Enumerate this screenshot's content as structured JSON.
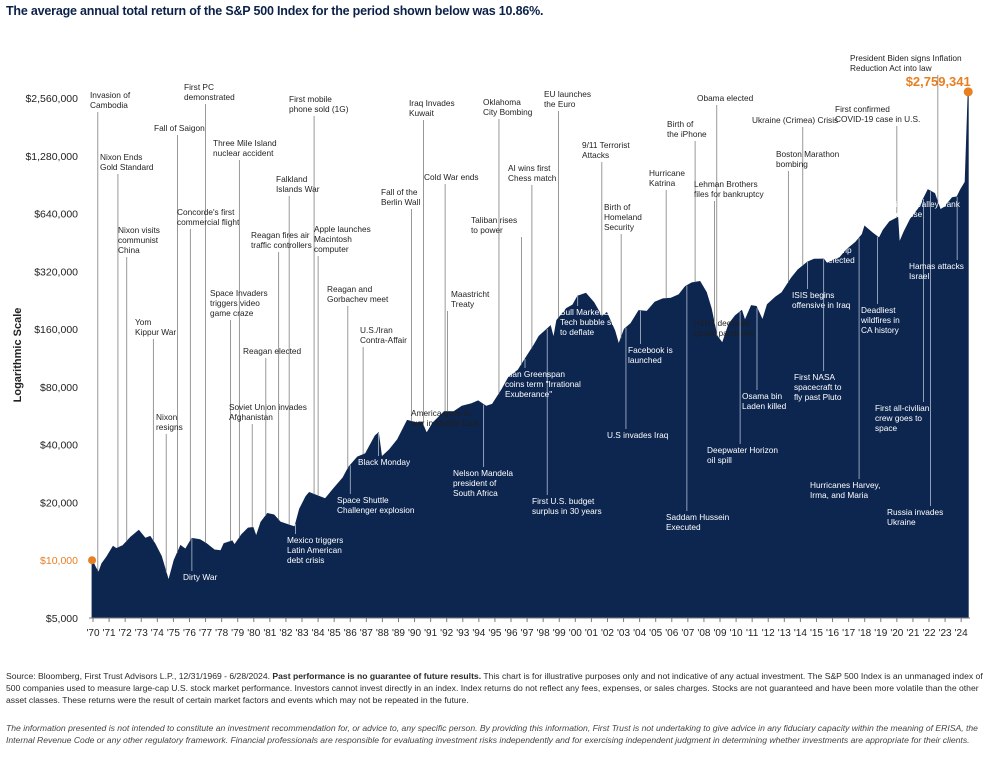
{
  "title": "The average annual total return of the S&P 500 Index for the period shown below was 10.86%.",
  "footer": {
    "source_lead": "Source: Bloomberg, First Trust Advisors L.P., 12/31/1969 - 6/28/2024.",
    "source_bold": "Past performance is no guarantee of future results.",
    "source_rest": "This chart is for illustrative purposes only and not indicative of any actual investment. The S&P 500 Index is an unmanaged index of 500 companies used to measure large-cap U.S. stock market performance. Investors cannot invest directly in an index. Index returns do not reflect any fees, expenses, or sales charges. Stocks are not guaranteed and have been more volatile than the other asset classes. These returns were the result of certain market factors and events which may not be repeated in the future.",
    "disclaimer": "The information presented is not intended to constitute an investment recommendation for, or advice to, any specific person. By providing this information, First Trust is not undertaking to give advice in any fiduciary capacity within the meaning of ERISA, the Internal Revenue Code or any other regulatory framework. Financial professionals are responsible for evaluating investment risks independently and for exercising independent judgment in determining whether investments are appropriate for their clients."
  },
  "chart_data": {
    "type": "area",
    "ylabel": "Logarithmic Scale",
    "y_scale": "log2",
    "ylim": [
      5000,
      3500000
    ],
    "xlim": [
      1969.8,
      2024.6
    ],
    "y_ticks": [
      {
        "value": 5000,
        "label": "$5,000"
      },
      {
        "value": 10000,
        "label": "$10,000",
        "highlight": true
      },
      {
        "value": 20000,
        "label": "$20,000"
      },
      {
        "value": 40000,
        "label": "$40,000"
      },
      {
        "value": 80000,
        "label": "$80,000"
      },
      {
        "value": 160000,
        "label": "$160,000"
      },
      {
        "value": 320000,
        "label": "$320,000"
      },
      {
        "value": 640000,
        "label": "$640,000"
      },
      {
        "value": 1280000,
        "label": "$1,280,000"
      },
      {
        "value": 2560000,
        "label": "$2,560,000"
      }
    ],
    "x_ticks": [
      "'70",
      "'71",
      "'72",
      "'73",
      "'74",
      "'75",
      "'76",
      "'77",
      "'78",
      "'79",
      "'80",
      "'81",
      "'82",
      "'83",
      "'84",
      "'85",
      "'86",
      "'87",
      "'88",
      "'89",
      "'90",
      "'91",
      "'92",
      "'93",
      "'94",
      "'95",
      "'96",
      "'97",
      "'98",
      "'99",
      "'00",
      "'01",
      "'02",
      "'03",
      "'04",
      "'05",
      "'06",
      "'07",
      "'08",
      "'09",
      "'10",
      "'11",
      "'12",
      "'13",
      "'14",
      "'15",
      "'16",
      "'17",
      "'18",
      "'19",
      "'20",
      "'21",
      "'22",
      "'23",
      "'24"
    ],
    "start": {
      "x": 1969.99,
      "value": 10000,
      "label": "$10,000"
    },
    "end": {
      "x": 2024.49,
      "value": 2759341,
      "label": "$2,759,341"
    },
    "colors": {
      "area": "#0d2650",
      "highlight": "#e87f22"
    },
    "series": [
      {
        "x": [
          1969.99,
          1970.2,
          1970.4,
          1970.6,
          1970.9,
          1971.3,
          1971.5,
          1971.9,
          1972.4,
          1972.9,
          1973.3,
          1973.6,
          1973.9,
          1974.3,
          1974.6,
          1974.75,
          1975.1,
          1975.5,
          1975.8,
          1976.2,
          1976.7,
          1977.1,
          1977.6,
          1978.0,
          1978.2,
          1978.7,
          1978.85,
          1979.3,
          1979.7,
          1980.0,
          1980.2,
          1980.5,
          1980.9,
          1981.3,
          1981.7,
          1982.0,
          1982.6,
          1982.9,
          1983.3,
          1983.5,
          1984.0,
          1984.5,
          1985.0,
          1985.6,
          1985.95,
          1986.5,
          1987.0,
          1987.6,
          1987.8,
          1988.0,
          1988.5,
          1989.0,
          1989.6,
          1990.2,
          1990.5,
          1990.8,
          1991.2,
          1991.9,
          1992.5,
          1993.0,
          1993.6,
          1994.0,
          1994.5,
          1994.9,
          1995.5,
          1995.9,
          1996.5,
          1996.9,
          1997.5,
          1997.8,
          1998.5,
          1998.7,
          1998.9,
          1999.5,
          1999.9,
          2000.2,
          2000.7,
          2001.2,
          2001.7,
          2002.0,
          2002.5,
          2002.75,
          2003.1,
          2003.5,
          2004.0,
          2004.5,
          2005.0,
          2005.5,
          2006.0,
          2006.5,
          2006.9,
          2007.3,
          2007.8,
          2008.2,
          2008.5,
          2008.85,
          2009.2,
          2009.6,
          2010.0,
          2010.4,
          2010.6,
          2011.0,
          2011.3,
          2011.7,
          2012.0,
          2012.5,
          2012.9,
          2013.5,
          2013.9,
          2014.5,
          2014.9,
          2015.5,
          2015.7,
          2016.1,
          2016.5,
          2016.9,
          2017.5,
          2017.9,
          2018.05,
          2018.5,
          2018.95,
          2019.2,
          2019.6,
          2020.1,
          2020.2,
          2020.5,
          2020.9,
          2021.4,
          2021.99,
          2022.4,
          2022.75,
          2023.0,
          2023.5,
          2023.8,
          2024.0,
          2024.3,
          2024.49
        ],
        "values": [
          10000,
          9200,
          8600,
          9600,
          10400,
          11800,
          11500,
          11900,
          13200,
          14300,
          13000,
          13300,
          12200,
          10500,
          8600,
          7800,
          10000,
          11900,
          11400,
          13000,
          12800,
          12200,
          11300,
          11200,
          12200,
          12600,
          12000,
          13600,
          14700,
          14800,
          13300,
          15800,
          17500,
          17200,
          15800,
          15500,
          14900,
          18500,
          21500,
          22500,
          21700,
          20900,
          23500,
          26900,
          30500,
          34500,
          35900,
          44500,
          46000,
          34500,
          37700,
          42600,
          53500,
          52000,
          52500,
          45800,
          52000,
          59500,
          59400,
          63500,
          65400,
          67600,
          63400,
          65000,
          78000,
          89700,
          98000,
          111000,
          133000,
          147000,
          166000,
          143000,
          178000,
          205000,
          214000,
          238000,
          246000,
          220000,
          186000,
          195000,
          157000,
          133000,
          160000,
          171000,
          200000,
          198000,
          221000,
          230000,
          232000,
          242000,
          267000,
          279000,
          283000,
          249000,
          205000,
          148000,
          135000,
          170000,
          188000,
          200000,
          177000,
          212000,
          210000,
          178000,
          215000,
          235000,
          248000,
          296000,
          326000,
          358000,
          370000,
          371000,
          352000,
          367000,
          377000,
          413000,
          455000,
          499000,
          549000,
          510000,
          477000,
          525000,
          580000,
          610000,
          450000,
          515000,
          600000,
          680000,
          852000,
          815000,
          670000,
          690000,
          775000,
          782000,
          850000,
          935000,
          2759341
        ]
      }
    ],
    "annotations": [
      {
        "text": "Invasion of|Cambodia",
        "x": 1970.35
      },
      {
        "text": "Nixon Ends|Gold Standard",
        "x": 1971.6
      },
      {
        "text": "Nixon visits|communist|China",
        "x": 1972.15
      },
      {
        "text": "Yom|Kippur War",
        "x": 1973.8
      },
      {
        "text": "Fall of Saigon",
        "x": 1975.3
      },
      {
        "text": "Nixon|resigns",
        "x": 1974.6
      },
      {
        "text": "First PC|demonstrated",
        "x": 1977.05
      },
      {
        "text": "Concorde's first|commercial flight",
        "x": 1976.1
      },
      {
        "text": "Three Mile Island|nuclear accident",
        "x": 1979.15
      },
      {
        "text": "Space Invaders|triggers video|game craze",
        "x": 1978.6
      },
      {
        "text": "Dirty War",
        "x": 1976.2
      },
      {
        "text": "Soviet Union invades|Afghanistan",
        "x": 1979.95
      },
      {
        "text": "Reagan elected",
        "x": 1980.8
      },
      {
        "text": "Falkland|Islands War",
        "x": 1982.25
      },
      {
        "text": "Reagan fires air|traffic controllers",
        "x": 1981.6
      },
      {
        "text": "Mexico triggers|Latin American|debt crisis",
        "x": 1982.65
      },
      {
        "text": "First mobile|phone sold (1G)",
        "x": 1983.8
      },
      {
        "text": "Apple launches|Macintosh|computer",
        "x": 1984.05
      },
      {
        "text": "Reagan and|Gorbachev meet",
        "x": 1985.9
      },
      {
        "text": "Space Shuttle|Challenger explosion",
        "x": 1986.05
      },
      {
        "text": "U.S./Iran|Contra-Affair",
        "x": 1986.85
      },
      {
        "text": "Black Monday",
        "x": 1987.8
      },
      {
        "text": "Fall of the|Berlin Wall",
        "x": 1989.85
      },
      {
        "text": "Iraq Invades|Kuwait",
        "x": 1990.6
      },
      {
        "text": "America goes to|war in Middle East",
        "x": 1991.05
      },
      {
        "text": "Cold War ends",
        "x": 1991.95
      },
      {
        "text": "Maastricht|Treaty",
        "x": 1992.1
      },
      {
        "text": "Nelson Mandela|president of|South Africa",
        "x": 1994.35
      },
      {
        "text": "Oklahoma|City Bombing",
        "x": 1995.3
      },
      {
        "text": "Taliban rises|to power",
        "x": 1996.7
      },
      {
        "text": "Alan Greenspan|coins term \"Irrational|Exuberance\"",
        "x": 1996.92
      },
      {
        "text": "AI wins first|Chess match",
        "x": 1997.35
      },
      {
        "text": "EU launches|the Euro",
        "x": 1999.0
      },
      {
        "text": "First U.S. budget|surplus in 30 years",
        "x": 1998.3
      },
      {
        "text": "Bull Market Ends,|Tech bubble starts|to deflate",
        "x": 2000.2
      },
      {
        "text": "9/11 Terrorist|Attacks",
        "x": 2001.7
      },
      {
        "text": "Birth of|Homeland|Security",
        "x": 2002.9
      },
      {
        "text": "U.S invades Iraq",
        "x": 2003.2
      },
      {
        "text": "Facebook is|launched",
        "x": 2004.1
      },
      {
        "text": "Hurricane|Katrina",
        "x": 2005.7
      },
      {
        "text": "Birth of|the iPhone",
        "x": 2007.5
      },
      {
        "text": "Saddam Hussein|Executed",
        "x": 2006.99
      },
      {
        "text": "Obama elected",
        "x": 2008.85
      },
      {
        "text": "Lehman Brothers|files for bankruptcy",
        "x": 2008.7
      },
      {
        "text": "H1N1 declared|global pandemic",
        "x": 2009.3
      },
      {
        "text": "Deepwater Horizon|oil spill",
        "x": 2010.3
      },
      {
        "text": "Osama bin|Laden killed",
        "x": 2011.35
      },
      {
        "text": "Ukraine (Crimea) Crisis",
        "x": 2014.2
      },
      {
        "text": "Boston Marathon|bombing",
        "x": 2013.3
      },
      {
        "text": "ISIS begins|offensive in Iraq",
        "x": 2014.5
      },
      {
        "text": "First NASA|spacecraft to|fly past Pluto",
        "x": 2015.5
      },
      {
        "text": "Trump|elected",
        "x": 2016.85
      },
      {
        "text": "Hurricanes Harvey,|Irma, and Maria",
        "x": 2017.7
      },
      {
        "text": "Deadliest|wildfires in|CA history",
        "x": 2018.85
      },
      {
        "text": "First confirmed|COVID-19 case in U.S.",
        "x": 2020.05
      },
      {
        "text": "First all-civilian|crew goes to|space",
        "x": 2021.7
      },
      {
        "text": "President Biden signs Inflation|Reduction Act into law",
        "x": 2022.6
      },
      {
        "text": "Silicon Valley Bank|Collapse",
        "x": 2023.2
      },
      {
        "text": "Russia invades|Ukraine",
        "x": 2022.15
      },
      {
        "text": "Hamas attacks|Israel",
        "x": 2023.8
      }
    ]
  }
}
